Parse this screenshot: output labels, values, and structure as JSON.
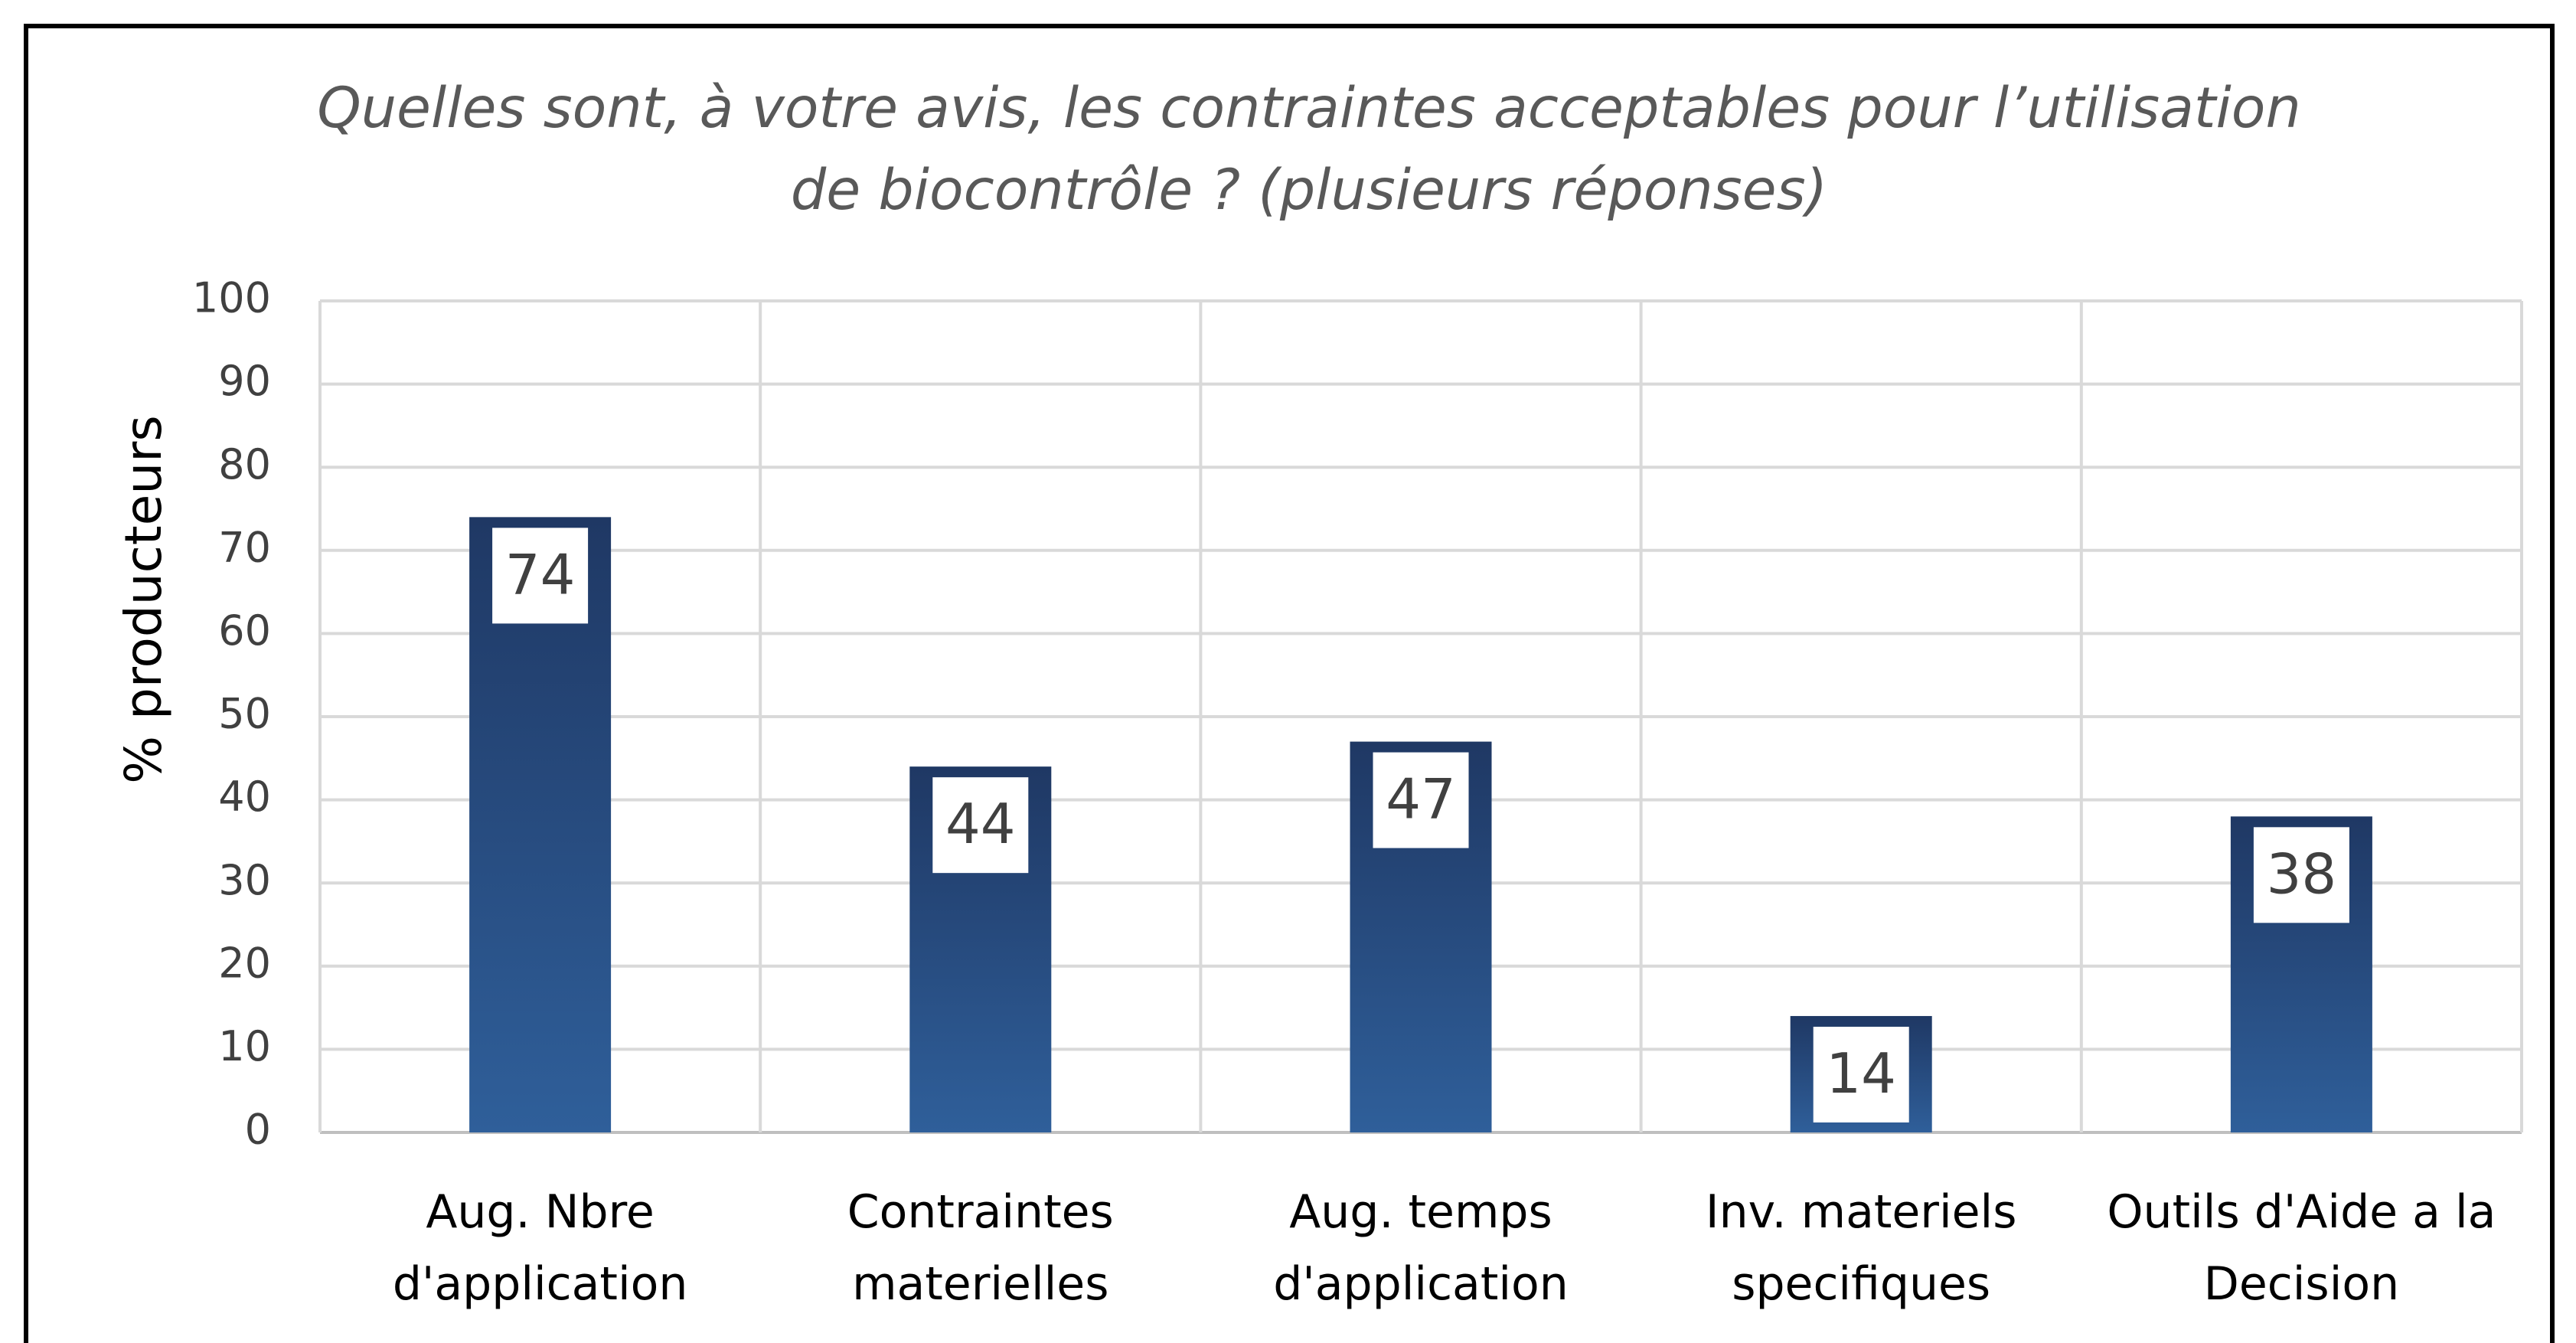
{
  "chart_data": {
    "type": "bar",
    "title": [
      "Quelles sont, à votre avis, les contraintes acceptables pour l’utilisation",
      "de biocontrôle ? (plusieurs réponses)"
    ],
    "y_label": "% producteurs",
    "categories": [
      "Aug. Nbre d'application",
      "Contraintes materielles",
      "Aug. temps d'application",
      "Inv. materiels specifiques",
      "Outils d'Aide a la Decision"
    ],
    "values": [
      74,
      44,
      47,
      14,
      38
    ],
    "color": [
      "#1f3864",
      "#2f5f9a"
    ],
    "ylim": [
      0,
      100
    ],
    "yticks": [
      0,
      10,
      20,
      30,
      40,
      50,
      60,
      70,
      80,
      90,
      100
    ],
    "grid": true
  }
}
